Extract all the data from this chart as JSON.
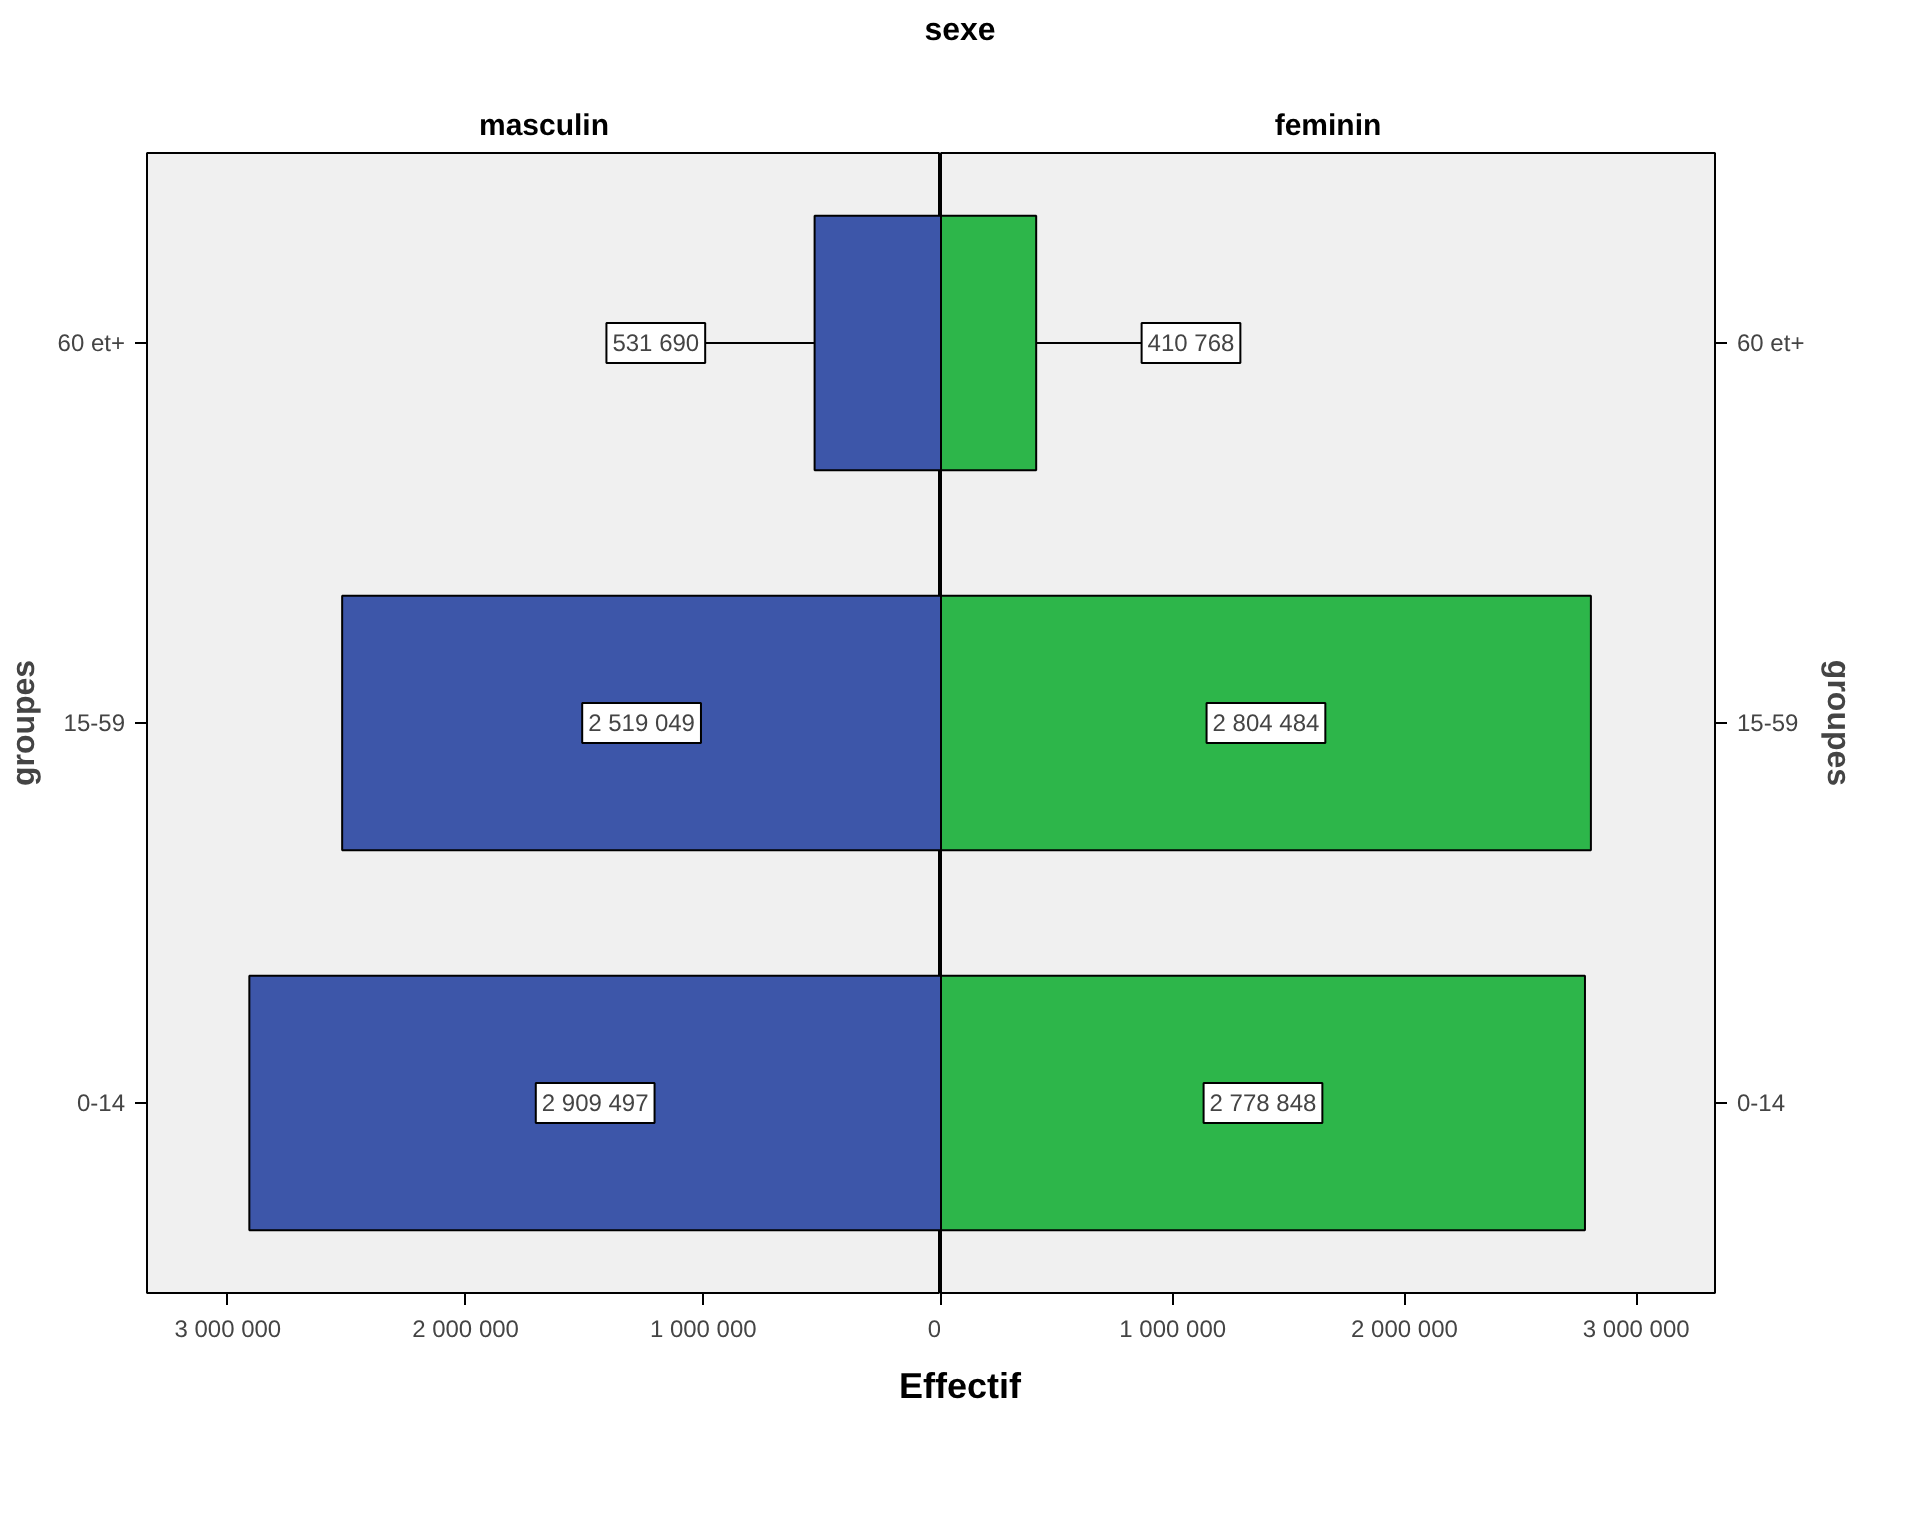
{
  "chart_data": [
    {
      "type": "bar",
      "orientation": "horizontal",
      "title": "sexe",
      "subtitle": "masculin",
      "xlabel": "Effectif",
      "ylabel": "groupes",
      "categories": [
        "60 et+",
        "15-59",
        "0-14"
      ],
      "series": [
        {
          "color": "#3d56a9",
          "values": [
            531690,
            2519049,
            2909497
          ],
          "value_labels": [
            "531 690",
            "2 519 049",
            "2 909 497"
          ]
        }
      ],
      "xlim": [
        3340000,
        0
      ],
      "xticks": [
        {
          "value": 3000000,
          "label": "3 000 000"
        },
        {
          "value": 2000000,
          "label": "2 000 000"
        },
        {
          "value": 1000000,
          "label": "1 000 000"
        },
        0
      ],
      "grid": false
    },
    {
      "type": "bar",
      "orientation": "horizontal",
      "subtitle": "feminin",
      "ylabel": "groupes",
      "categories": [
        "60 et+",
        "15-59",
        "0-14"
      ],
      "series": [
        {
          "color": "#2db64a",
          "values": [
            410768,
            2804484,
            2778848
          ],
          "value_labels": [
            "410 768",
            "2 804 484",
            "2 778 848"
          ]
        }
      ],
      "xlim": [
        0,
        3340000
      ],
      "xticks": [
        {
          "value": 0,
          "label": null
        },
        {
          "value": 1000000,
          "label": "1 000 000"
        },
        {
          "value": 2000000,
          "label": "2 000 000"
        },
        {
          "value": 3000000,
          "label": "3 000 000"
        }
      ],
      "grid": false
    }
  ]
}
